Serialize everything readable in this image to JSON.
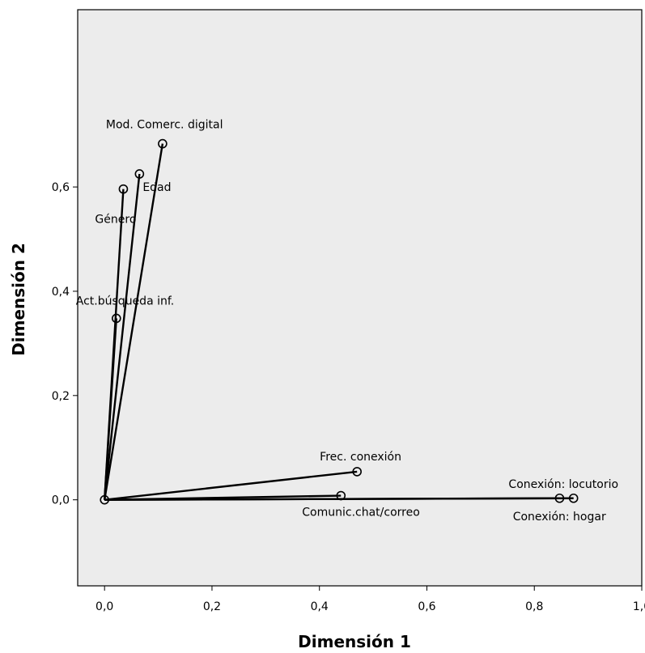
{
  "chart_data": {
    "type": "scatter",
    "style": "biplot-vectors",
    "title": "",
    "xlabel": "Dimensión 1",
    "ylabel": "Dimensión 2",
    "xlim": [
      -0.05,
      1.0
    ],
    "ylim": [
      -0.165,
      0.94
    ],
    "xticks": [
      0.0,
      0.2,
      0.4,
      0.6,
      0.8,
      1.0
    ],
    "xtick_labels": [
      "0,0",
      "0,2",
      "0,4",
      "0,6",
      "0,8",
      "1,0"
    ],
    "yticks": [
      0.0,
      0.2,
      0.4,
      0.6
    ],
    "ytick_labels": [
      "0,0",
      "0,2",
      "0,4",
      "0,6"
    ],
    "grid": false,
    "origin": [
      0.0,
      0.0
    ],
    "colors": {
      "plot_background": "#ececec",
      "ink": "#000000"
    },
    "points": [
      {
        "label": "Mod. Comerc. digital",
        "x": 0.108,
        "y": 0.683
      },
      {
        "label": "Edad",
        "x": 0.065,
        "y": 0.625
      },
      {
        "label": "Género",
        "x": 0.035,
        "y": 0.596
      },
      {
        "label": "Act.búsqueda inf.",
        "x": 0.022,
        "y": 0.348
      },
      {
        "label": "Frec. conexión",
        "x": 0.47,
        "y": 0.054
      },
      {
        "label": "Comunic.chat/correo",
        "x": 0.44,
        "y": 0.008
      },
      {
        "label": "Conexión: locutorio",
        "x": 0.847,
        "y": 0.003
      },
      {
        "label": "Conexión: hogar",
        "x": 0.873,
        "y": 0.003
      }
    ]
  }
}
